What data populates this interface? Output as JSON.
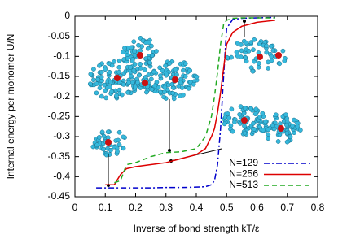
{
  "chart_data": {
    "type": "line",
    "x_label": "Inverse of bond strength kT/ε",
    "y_label": "Internal energy per monomer U/N",
    "x": [
      0.07,
      0.1,
      0.13,
      0.15,
      0.17,
      0.2,
      0.25,
      0.3,
      0.35,
      0.4,
      0.43,
      0.45,
      0.46,
      0.47,
      0.48,
      0.49,
      0.5,
      0.52,
      0.55,
      0.6,
      0.66
    ],
    "series": [
      {
        "name": "N=129",
        "color": "#0000cc",
        "dash": "dash-dot",
        "values": [
          -0.428,
          -0.428,
          -0.428,
          -0.428,
          -0.428,
          -0.428,
          -0.428,
          -0.427,
          -0.427,
          -0.426,
          -0.425,
          -0.42,
          -0.41,
          -0.37,
          -0.28,
          -0.15,
          -0.03,
          -0.008,
          -0.005,
          -0.004,
          -0.003
        ]
      },
      {
        "name": "N=256",
        "color": "#dd0000",
        "dash": "solid",
        "values": [
          null,
          -0.42,
          -0.42,
          -0.395,
          -0.38,
          -0.375,
          -0.37,
          -0.365,
          -0.355,
          -0.345,
          -0.33,
          -0.3,
          -0.28,
          -0.24,
          -0.19,
          -0.13,
          -0.07,
          -0.04,
          -0.025,
          -0.015,
          -0.01
        ]
      },
      {
        "name": "N=513",
        "color": "#22aa22",
        "dash": "dash",
        "values": [
          null,
          null,
          -0.415,
          -0.41,
          -0.37,
          -0.365,
          -0.35,
          -0.34,
          -0.338,
          -0.33,
          -0.3,
          -0.25,
          -0.2,
          -0.14,
          -0.07,
          -0.02,
          -0.01,
          -0.005,
          -0.004,
          -0.004,
          -0.004
        ]
      }
    ],
    "xlim": [
      0,
      0.8
    ],
    "xticks": [
      0,
      0.1,
      0.2,
      0.3,
      0.4,
      0.5,
      0.6,
      0.7,
      0.8
    ],
    "ylim": [
      -0.45,
      0
    ],
    "yticks": [
      0,
      -0.05,
      -0.1,
      -0.15,
      -0.2,
      -0.25,
      -0.3,
      -0.35,
      -0.4,
      -0.45
    ],
    "grid": false,
    "legend": "lower-right"
  }
}
